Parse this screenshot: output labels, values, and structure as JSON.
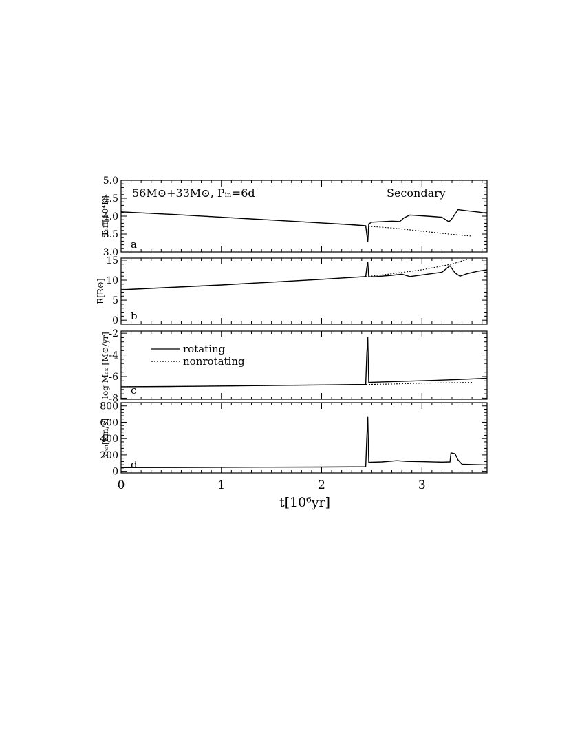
{
  "figure": {
    "title_left": "56M⊙+33M⊙, Pᵢₙ=6d",
    "title_right": "Secondary",
    "xlabel": "t[10⁶yr]",
    "legend": [
      {
        "label": "rotating",
        "style": "solid"
      },
      {
        "label": "nonrotating",
        "style": "dotted"
      }
    ]
  },
  "chart_data": [
    {
      "type": "line",
      "panel": "a",
      "ylabel": "Tₑff[10⁴K]",
      "xlim": [
        0,
        3.65
      ],
      "ylim": [
        3.0,
        5.0
      ],
      "yticks": [
        3.0,
        3.5,
        4.0,
        4.5,
        5.0
      ],
      "ytick_labels": [
        "3.0",
        "3.5",
        "4.0",
        "4.5",
        "5.0"
      ],
      "series": [
        {
          "name": "rotating",
          "style": "solid",
          "points": [
            [
              0,
              4.12
            ],
            [
              0.5,
              4.05
            ],
            [
              1.0,
              3.97
            ],
            [
              1.5,
              3.89
            ],
            [
              2.0,
              3.81
            ],
            [
              2.3,
              3.76
            ],
            [
              2.44,
              3.73
            ],
            [
              2.45,
              3.5
            ],
            [
              2.46,
              3.28
            ],
            [
              2.47,
              3.78
            ],
            [
              2.5,
              3.83
            ],
            [
              2.7,
              3.86
            ],
            [
              2.78,
              3.85
            ],
            [
              2.82,
              3.95
            ],
            [
              2.88,
              4.03
            ],
            [
              2.95,
              4.02
            ],
            [
              3.1,
              3.99
            ],
            [
              3.2,
              3.97
            ],
            [
              3.27,
              3.84
            ],
            [
              3.3,
              3.93
            ],
            [
              3.36,
              4.18
            ],
            [
              3.45,
              4.15
            ],
            [
              3.55,
              4.12
            ],
            [
              3.65,
              4.08
            ]
          ]
        },
        {
          "name": "nonrotating",
          "style": "dotted",
          "points": [
            [
              0,
              4.12
            ],
            [
              0.5,
              4.05
            ],
            [
              1.0,
              3.97
            ],
            [
              1.5,
              3.89
            ],
            [
              2.0,
              3.81
            ],
            [
              2.3,
              3.76
            ],
            [
              2.45,
              3.72
            ],
            [
              2.7,
              3.67
            ],
            [
              3.0,
              3.58
            ],
            [
              3.3,
              3.49
            ],
            [
              3.5,
              3.44
            ]
          ]
        }
      ]
    },
    {
      "type": "line",
      "panel": "b",
      "ylabel": "R[R⊙]",
      "xlim": [
        0,
        3.65
      ],
      "ylim": [
        -1,
        15.5
      ],
      "yticks": [
        0,
        5,
        10,
        15
      ],
      "ytick_labels": [
        "0",
        "5",
        "10",
        "15"
      ],
      "series": [
        {
          "name": "rotating",
          "style": "solid",
          "points": [
            [
              0,
              7.6
            ],
            [
              0.5,
              8.2
            ],
            [
              1.0,
              8.8
            ],
            [
              1.5,
              9.5
            ],
            [
              2.0,
              10.2
            ],
            [
              2.44,
              10.9
            ],
            [
              2.45,
              13.0
            ],
            [
              2.46,
              14.5
            ],
            [
              2.47,
              10.8
            ],
            [
              2.55,
              10.9
            ],
            [
              2.7,
              11.2
            ],
            [
              2.8,
              11.5
            ],
            [
              2.88,
              10.9
            ],
            [
              3.0,
              11.3
            ],
            [
              3.2,
              12.0
            ],
            [
              3.28,
              13.6
            ],
            [
              3.33,
              11.8
            ],
            [
              3.38,
              11.0
            ],
            [
              3.45,
              11.6
            ],
            [
              3.55,
              12.2
            ],
            [
              3.65,
              12.6
            ]
          ]
        },
        {
          "name": "nonrotating",
          "style": "dotted",
          "points": [
            [
              0,
              7.6
            ],
            [
              0.5,
              8.2
            ],
            [
              1.0,
              8.8
            ],
            [
              1.5,
              9.5
            ],
            [
              2.0,
              10.2
            ],
            [
              2.45,
              10.9
            ],
            [
              2.7,
              11.6
            ],
            [
              3.0,
              12.6
            ],
            [
              3.3,
              14.0
            ],
            [
              3.45,
              15.2
            ]
          ]
        }
      ]
    },
    {
      "type": "line",
      "panel": "c",
      "ylabel": "log Mₒₓ [M⊙/yr]",
      "xlim": [
        0,
        3.65
      ],
      "ylim": [
        -8.1,
        -1.8
      ],
      "yticks": [
        -8,
        -6,
        -4,
        -2
      ],
      "ytick_labels": [
        "-8",
        "-6",
        "-4",
        "-2"
      ],
      "series": [
        {
          "name": "rotating",
          "style": "solid",
          "points": [
            [
              0,
              -6.95
            ],
            [
              0.5,
              -6.92
            ],
            [
              1.0,
              -6.88
            ],
            [
              1.5,
              -6.83
            ],
            [
              2.0,
              -6.78
            ],
            [
              2.44,
              -6.74
            ],
            [
              2.45,
              -4.0
            ],
            [
              2.46,
              -2.4
            ],
            [
              2.47,
              -6.55
            ],
            [
              2.6,
              -6.5
            ],
            [
              2.9,
              -6.42
            ],
            [
              3.2,
              -6.33
            ],
            [
              3.4,
              -6.26
            ],
            [
              3.65,
              -6.16
            ]
          ]
        },
        {
          "name": "nonrotating",
          "style": "dotted",
          "points": [
            [
              0,
              -6.95
            ],
            [
              0.5,
              -6.92
            ],
            [
              1.0,
              -6.88
            ],
            [
              1.5,
              -6.83
            ],
            [
              2.0,
              -6.78
            ],
            [
              2.45,
              -6.74
            ],
            [
              2.7,
              -6.7
            ],
            [
              3.0,
              -6.62
            ],
            [
              3.3,
              -6.58
            ],
            [
              3.5,
              -6.55
            ]
          ]
        }
      ]
    },
    {
      "type": "line",
      "panel": "d",
      "ylabel": "vᵣₒₜ[km/s]",
      "xlim": [
        0,
        3.65
      ],
      "ylim": [
        -20,
        840
      ],
      "yticks": [
        0,
        200,
        400,
        600,
        800
      ],
      "ytick_labels": [
        "0",
        "200",
        "400",
        "600",
        "800"
      ],
      "series": [
        {
          "name": "rotating",
          "style": "solid",
          "points": [
            [
              0,
              45
            ],
            [
              0.5,
              46
            ],
            [
              1.0,
              48
            ],
            [
              1.5,
              50
            ],
            [
              2.0,
              52
            ],
            [
              2.44,
              55
            ],
            [
              2.45,
              400
            ],
            [
              2.46,
              660
            ],
            [
              2.47,
              110
            ],
            [
              2.6,
              115
            ],
            [
              2.75,
              130
            ],
            [
              2.85,
              122
            ],
            [
              3.0,
              118
            ],
            [
              3.2,
              112
            ],
            [
              3.28,
              115
            ],
            [
              3.29,
              225
            ],
            [
              3.33,
              215
            ],
            [
              3.36,
              140
            ],
            [
              3.4,
              85
            ],
            [
              3.55,
              80
            ],
            [
              3.65,
              78
            ]
          ]
        }
      ]
    }
  ],
  "xaxis": {
    "xticks": [
      0,
      1,
      2,
      3
    ],
    "xtick_labels": [
      "0",
      "1",
      "2",
      "3"
    ]
  }
}
